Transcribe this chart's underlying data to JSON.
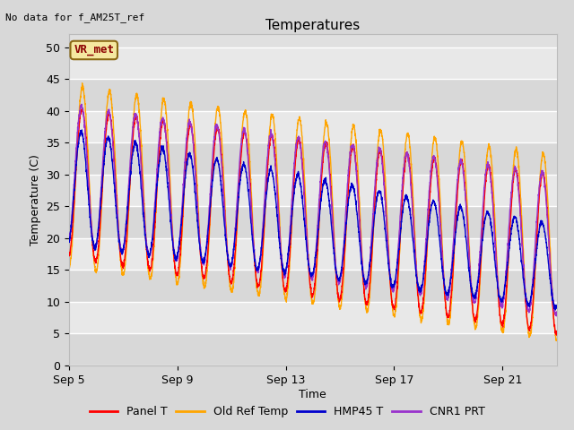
{
  "title": "Temperatures",
  "xlabel": "Time",
  "ylabel": "Temperature (C)",
  "annotation_text": "No data for f_AM25T_ref",
  "legend_label_text": "VR_met",
  "legend_entries": [
    "Panel T",
    "Old Ref Temp",
    "HMP45 T",
    "CNR1 PRT"
  ],
  "line_colors": [
    "#ff0000",
    "#ffa500",
    "#0000cd",
    "#9932cc"
  ],
  "ylim": [
    0,
    52
  ],
  "yticks": [
    0,
    5,
    10,
    15,
    20,
    25,
    30,
    35,
    40,
    45,
    50
  ],
  "x_tick_labels": [
    "Sep 5",
    "Sep 9",
    "Sep 13",
    "Sep 17",
    "Sep 21"
  ],
  "background_color": "#e8e8e8",
  "grid_color": "#ffffff",
  "total_days": 18.0,
  "num_points": 3000,
  "tick_days": [
    0,
    4,
    8,
    12,
    16
  ]
}
